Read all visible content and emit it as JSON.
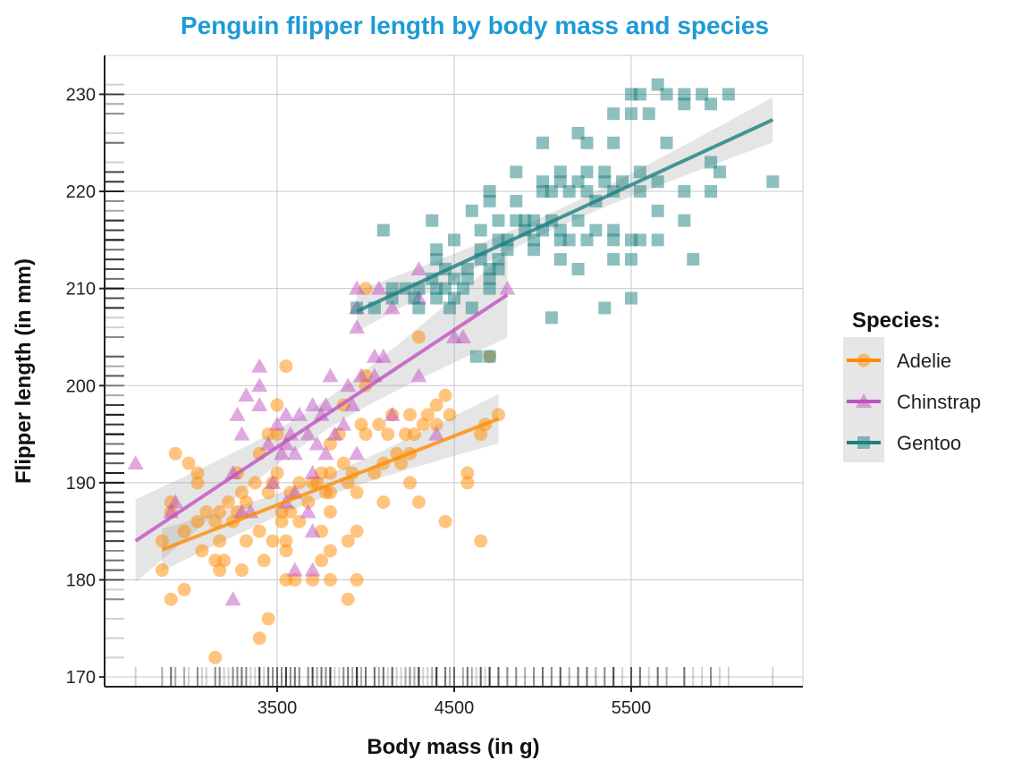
{
  "chart_data": {
    "type": "scatter",
    "title": "Penguin flipper length by body mass and species",
    "xlabel": "Body mass (in g)",
    "ylabel": "Flipper length (in mm)",
    "xlim": [
      2525,
      6470
    ],
    "ylim": [
      169,
      234
    ],
    "xticks": [
      3500,
      4500,
      5500
    ],
    "yticks": [
      170,
      180,
      190,
      200,
      210,
      220,
      230
    ],
    "grid": true,
    "rug": true,
    "smooth": "linear with confidence band",
    "legend": {
      "title": "Species:",
      "placement": "right"
    },
    "title_color": "#1E9AD6",
    "series": [
      {
        "name": "Adelie",
        "color": "#FF8C00",
        "marker": "circle",
        "points": [
          [
            2850,
            184
          ],
          [
            2850,
            181
          ],
          [
            2900,
            188
          ],
          [
            2900,
            187
          ],
          [
            2925,
            193
          ],
          [
            2900,
            178
          ],
          [
            2975,
            179
          ],
          [
            3000,
            192
          ],
          [
            3050,
            191
          ],
          [
            3050,
            190
          ],
          [
            2975,
            185
          ],
          [
            3050,
            186
          ],
          [
            3075,
            183
          ],
          [
            3150,
            182
          ],
          [
            3175,
            184
          ],
          [
            3150,
            172
          ],
          [
            3175,
            181
          ],
          [
            3200,
            182
          ],
          [
            3175,
            187
          ],
          [
            3100,
            187
          ],
          [
            3150,
            186
          ],
          [
            3225,
            188
          ],
          [
            3275,
            191
          ],
          [
            3250,
            186
          ],
          [
            3275,
            187
          ],
          [
            3300,
            189
          ],
          [
            3300,
            181
          ],
          [
            3325,
            188
          ],
          [
            3325,
            184
          ],
          [
            3375,
            190
          ],
          [
            3400,
            193
          ],
          [
            3400,
            185
          ],
          [
            3425,
            182
          ],
          [
            3450,
            195
          ],
          [
            3450,
            189
          ],
          [
            3450,
            176
          ],
          [
            3475,
            190
          ],
          [
            3475,
            184
          ],
          [
            3400,
            174
          ],
          [
            3500,
            195
          ],
          [
            3500,
            198
          ],
          [
            3500,
            191
          ],
          [
            3525,
            187
          ],
          [
            3525,
            186
          ],
          [
            3550,
            184
          ],
          [
            3550,
            202
          ],
          [
            3550,
            180
          ],
          [
            3550,
            183
          ],
          [
            3575,
            189
          ],
          [
            3575,
            187
          ],
          [
            3600,
            180
          ],
          [
            3625,
            190
          ],
          [
            3625,
            186
          ],
          [
            3675,
            188
          ],
          [
            3700,
            190
          ],
          [
            3700,
            180
          ],
          [
            3725,
            190
          ],
          [
            3750,
            185
          ],
          [
            3750,
            191
          ],
          [
            3750,
            182
          ],
          [
            3775,
            189
          ],
          [
            3800,
            183
          ],
          [
            3800,
            187
          ],
          [
            3800,
            191
          ],
          [
            3800,
            194
          ],
          [
            3800,
            189
          ],
          [
            3800,
            180
          ],
          [
            3850,
            195
          ],
          [
            3875,
            198
          ],
          [
            3875,
            192
          ],
          [
            3900,
            190
          ],
          [
            3900,
            184
          ],
          [
            3900,
            178
          ],
          [
            3925,
            191
          ],
          [
            3950,
            189
          ],
          [
            3950,
            185
          ],
          [
            3950,
            180
          ],
          [
            3975,
            196
          ],
          [
            4000,
            195
          ],
          [
            4000,
            201
          ],
          [
            4000,
            200
          ],
          [
            4000,
            210
          ],
          [
            4050,
            191
          ],
          [
            4075,
            196
          ],
          [
            4100,
            192
          ],
          [
            4100,
            188
          ],
          [
            4125,
            195
          ],
          [
            4150,
            197
          ],
          [
            4175,
            193
          ],
          [
            4200,
            192
          ],
          [
            4225,
            195
          ],
          [
            4250,
            193
          ],
          [
            4250,
            190
          ],
          [
            4250,
            197
          ],
          [
            4275,
            195
          ],
          [
            4300,
            205
          ],
          [
            4300,
            188
          ],
          [
            4325,
            196
          ],
          [
            4350,
            197
          ],
          [
            4400,
            196
          ],
          [
            4400,
            198
          ],
          [
            4450,
            186
          ],
          [
            4450,
            199
          ],
          [
            4475,
            197
          ],
          [
            4575,
            191
          ],
          [
            4575,
            190
          ],
          [
            4650,
            195
          ],
          [
            4650,
            184
          ],
          [
            4675,
            196
          ],
          [
            4700,
            203
          ],
          [
            4750,
            197
          ]
        ]
      },
      {
        "name": "Chinstrap",
        "color": "#C052C2",
        "marker": "triangle",
        "points": [
          [
            2700,
            192
          ],
          [
            2900,
            187
          ],
          [
            2925,
            188
          ],
          [
            3250,
            191
          ],
          [
            3250,
            178
          ],
          [
            3275,
            197
          ],
          [
            3300,
            187
          ],
          [
            3300,
            195
          ],
          [
            3325,
            199
          ],
          [
            3350,
            187
          ],
          [
            3400,
            202
          ],
          [
            3400,
            200
          ],
          [
            3400,
            198
          ],
          [
            3450,
            194
          ],
          [
            3475,
            190
          ],
          [
            3500,
            196
          ],
          [
            3525,
            193
          ],
          [
            3550,
            194
          ],
          [
            3550,
            197
          ],
          [
            3550,
            188
          ],
          [
            3575,
            195
          ],
          [
            3600,
            193
          ],
          [
            3600,
            189
          ],
          [
            3600,
            181
          ],
          [
            3625,
            197
          ],
          [
            3675,
            195
          ],
          [
            3675,
            187
          ],
          [
            3700,
            198
          ],
          [
            3700,
            191
          ],
          [
            3700,
            185
          ],
          [
            3700,
            181
          ],
          [
            3725,
            194
          ],
          [
            3750,
            197
          ],
          [
            3775,
            198
          ],
          [
            3800,
            201
          ],
          [
            3775,
            193
          ],
          [
            3825,
            195
          ],
          [
            3875,
            196
          ],
          [
            3900,
            200
          ],
          [
            3925,
            198
          ],
          [
            3950,
            193
          ],
          [
            3950,
            210
          ],
          [
            3950,
            208
          ],
          [
            3950,
            206
          ],
          [
            3975,
            201
          ],
          [
            4050,
            203
          ],
          [
            4050,
            201
          ],
          [
            4075,
            210
          ],
          [
            4100,
            203
          ],
          [
            4150,
            197
          ],
          [
            4150,
            208
          ],
          [
            4300,
            201
          ],
          [
            4300,
            209
          ],
          [
            4300,
            212
          ],
          [
            4400,
            195
          ],
          [
            4500,
            205
          ],
          [
            4550,
            205
          ],
          [
            4800,
            210
          ]
        ]
      },
      {
        "name": "Gentoo",
        "color": "#1B8080",
        "marker": "square",
        "points": [
          [
            5500,
            230
          ],
          [
            5550,
            230
          ],
          [
            5700,
            230
          ],
          [
            5800,
            230
          ],
          [
            5900,
            230
          ],
          [
            6050,
            230
          ],
          [
            5650,
            231
          ],
          [
            5800,
            229
          ],
          [
            5950,
            229
          ],
          [
            5400,
            228
          ],
          [
            5500,
            228
          ],
          [
            5600,
            228
          ],
          [
            5000,
            225
          ],
          [
            5200,
            226
          ],
          [
            5250,
            225
          ],
          [
            5400,
            225
          ],
          [
            5700,
            225
          ],
          [
            5950,
            223
          ],
          [
            6000,
            222
          ],
          [
            4850,
            222
          ],
          [
            5100,
            222
          ],
          [
            5250,
            222
          ],
          [
            5350,
            222
          ],
          [
            5550,
            222
          ],
          [
            6300,
            221
          ],
          [
            5000,
            221
          ],
          [
            5100,
            221
          ],
          [
            5200,
            221
          ],
          [
            5350,
            221
          ],
          [
            5450,
            221
          ],
          [
            5650,
            221
          ],
          [
            5800,
            220
          ],
          [
            5950,
            220
          ],
          [
            4700,
            220
          ],
          [
            4850,
            219
          ],
          [
            5000,
            220
          ],
          [
            5050,
            220
          ],
          [
            5150,
            220
          ],
          [
            5250,
            220
          ],
          [
            5400,
            220
          ],
          [
            5550,
            220
          ],
          [
            5300,
            219
          ],
          [
            5650,
            218
          ],
          [
            5800,
            217
          ],
          [
            4375,
            217
          ],
          [
            4600,
            218
          ],
          [
            4700,
            219
          ],
          [
            4750,
            217
          ],
          [
            4850,
            217
          ],
          [
            4900,
            217
          ],
          [
            4950,
            217
          ],
          [
            5050,
            217
          ],
          [
            5200,
            217
          ],
          [
            4900,
            216
          ],
          [
            5000,
            216
          ],
          [
            5100,
            216
          ],
          [
            5300,
            216
          ],
          [
            5400,
            216
          ],
          [
            5650,
            215
          ],
          [
            5500,
            215
          ],
          [
            4950,
            215
          ],
          [
            5100,
            215
          ],
          [
            5150,
            215
          ],
          [
            5250,
            215
          ],
          [
            5400,
            215
          ],
          [
            5550,
            215
          ],
          [
            4650,
            216
          ],
          [
            4750,
            215
          ],
          [
            4800,
            215
          ],
          [
            4500,
            215
          ],
          [
            4400,
            214
          ],
          [
            4650,
            214
          ],
          [
            4950,
            214
          ],
          [
            5100,
            213
          ],
          [
            5200,
            212
          ],
          [
            5400,
            213
          ],
          [
            5500,
            213
          ],
          [
            5850,
            213
          ],
          [
            4100,
            216
          ],
          [
            4400,
            213
          ],
          [
            4450,
            212
          ],
          [
            4575,
            212
          ],
          [
            4700,
            212
          ],
          [
            4750,
            213
          ],
          [
            4800,
            214
          ],
          [
            4650,
            213
          ],
          [
            4150,
            210
          ],
          [
            4225,
            210
          ],
          [
            4300,
            210
          ],
          [
            4400,
            210
          ],
          [
            4450,
            210
          ],
          [
            4550,
            210
          ],
          [
            4700,
            210
          ],
          [
            4375,
            211
          ],
          [
            4500,
            211
          ],
          [
            4575,
            211
          ],
          [
            4700,
            211
          ],
          [
            4750,
            212
          ],
          [
            3950,
            208
          ],
          [
            4050,
            208
          ],
          [
            4150,
            209
          ],
          [
            4275,
            209
          ],
          [
            4400,
            209
          ],
          [
            4500,
            209
          ],
          [
            4600,
            208
          ],
          [
            4300,
            208
          ],
          [
            4475,
            208
          ],
          [
            5050,
            207
          ],
          [
            5500,
            209
          ],
          [
            5350,
            208
          ],
          [
            4625,
            203
          ],
          [
            4700,
            203
          ]
        ]
      }
    ]
  }
}
